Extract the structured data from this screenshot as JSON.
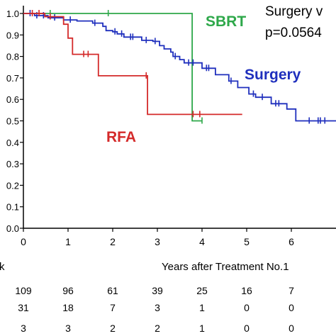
{
  "chart_data": {
    "type": "line",
    "title": "",
    "xlabel": "Years after Treatment No.1",
    "ylabel": "",
    "xlim": [
      0,
      7
    ],
    "ylim": [
      0.0,
      1.0
    ],
    "x_ticks": [
      "0",
      "1",
      "2",
      "3",
      "4",
      "5",
      "6"
    ],
    "y_ticks": [
      "0.0",
      "0.1",
      "0.2",
      "0.3",
      "0.4",
      "0.5",
      "0.6",
      "0.7",
      "0.8",
      "0.9",
      "1.0"
    ],
    "grid": false,
    "annotations": {
      "comparison": "Surgery v",
      "p_value": "p=0.0564"
    },
    "series": [
      {
        "name": "SBRT",
        "color": "#2ea84a",
        "label_position": "upper-right",
        "steps": [
          [
            0,
            1.0
          ],
          [
            3.78,
            1.0
          ],
          [
            3.78,
            0.5
          ],
          [
            4.0,
            0.5
          ]
        ],
        "censored": [
          [
            0.6,
            1.0
          ],
          [
            1.9,
            1.0
          ],
          [
            4.0,
            0.5
          ]
        ]
      },
      {
        "name": "Surgery",
        "color": "#1f2fbd",
        "label_position": "right",
        "steps": [
          [
            0,
            1.0
          ],
          [
            0.25,
            0.99
          ],
          [
            0.55,
            0.98
          ],
          [
            0.9,
            0.97
          ],
          [
            1.2,
            0.965
          ],
          [
            1.55,
            0.955
          ],
          [
            1.78,
            0.94
          ],
          [
            1.85,
            0.92
          ],
          [
            2.0,
            0.915
          ],
          [
            2.1,
            0.905
          ],
          [
            2.25,
            0.89
          ],
          [
            2.55,
            0.89
          ],
          [
            2.65,
            0.875
          ],
          [
            2.9,
            0.87
          ],
          [
            3.05,
            0.85
          ],
          [
            3.15,
            0.835
          ],
          [
            3.3,
            0.82
          ],
          [
            3.35,
            0.8
          ],
          [
            3.5,
            0.785
          ],
          [
            3.6,
            0.77
          ],
          [
            3.9,
            0.77
          ],
          [
            4.0,
            0.745
          ],
          [
            4.25,
            0.745
          ],
          [
            4.3,
            0.715
          ],
          [
            4.55,
            0.715
          ],
          [
            4.6,
            0.685
          ],
          [
            4.75,
            0.685
          ],
          [
            4.8,
            0.655
          ],
          [
            5.0,
            0.655
          ],
          [
            5.05,
            0.625
          ],
          [
            5.2,
            0.61
          ],
          [
            5.5,
            0.61
          ],
          [
            5.55,
            0.58
          ],
          [
            5.8,
            0.58
          ],
          [
            5.9,
            0.555
          ],
          [
            6.05,
            0.555
          ],
          [
            6.1,
            0.5
          ],
          [
            7.0,
            0.5
          ]
        ],
        "censored": [
          [
            0.15,
            1.0
          ],
          [
            0.3,
            0.99
          ],
          [
            0.45,
            0.99
          ],
          [
            0.7,
            0.98
          ],
          [
            1.05,
            0.97
          ],
          [
            1.6,
            0.955
          ],
          [
            2.05,
            0.915
          ],
          [
            2.2,
            0.905
          ],
          [
            2.4,
            0.89
          ],
          [
            2.45,
            0.89
          ],
          [
            2.75,
            0.875
          ],
          [
            2.95,
            0.87
          ],
          [
            3.4,
            0.8
          ],
          [
            3.7,
            0.77
          ],
          [
            3.8,
            0.77
          ],
          [
            4.1,
            0.745
          ],
          [
            4.15,
            0.745
          ],
          [
            4.65,
            0.685
          ],
          [
            5.15,
            0.625
          ],
          [
            5.35,
            0.61
          ],
          [
            5.65,
            0.58
          ],
          [
            5.72,
            0.58
          ],
          [
            6.4,
            0.5
          ],
          [
            6.6,
            0.5
          ],
          [
            6.65,
            0.5
          ],
          [
            6.75,
            0.5
          ]
        ]
      },
      {
        "name": "RFA",
        "color": "#d42a2a",
        "label_position": "lower-middle",
        "steps": [
          [
            0,
            1.0
          ],
          [
            0.48,
            0.985
          ],
          [
            0.9,
            0.95
          ],
          [
            1.0,
            0.885
          ],
          [
            1.1,
            0.81
          ],
          [
            1.65,
            0.81
          ],
          [
            1.68,
            0.71
          ],
          [
            2.75,
            0.71
          ],
          [
            2.78,
            0.53
          ],
          [
            4.9,
            0.53
          ]
        ],
        "censored": [
          [
            0.2,
            1.0
          ],
          [
            0.35,
            1.0
          ],
          [
            0.6,
            0.985
          ],
          [
            1.35,
            0.81
          ],
          [
            1.45,
            0.81
          ],
          [
            2.75,
            0.71
          ],
          [
            3.8,
            0.53
          ],
          [
            3.95,
            0.53
          ]
        ]
      }
    ],
    "at_risk": {
      "label_fragment": "k",
      "x": [
        0,
        1,
        2,
        3,
        4,
        5,
        6
      ],
      "rows": [
        [
          "109",
          "96",
          "61",
          "39",
          "25",
          "16",
          "7"
        ],
        [
          "31",
          "18",
          "7",
          "3",
          "1",
          "0",
          "0"
        ],
        [
          "3",
          "3",
          "2",
          "2",
          "1",
          "0",
          "0"
        ]
      ]
    }
  }
}
